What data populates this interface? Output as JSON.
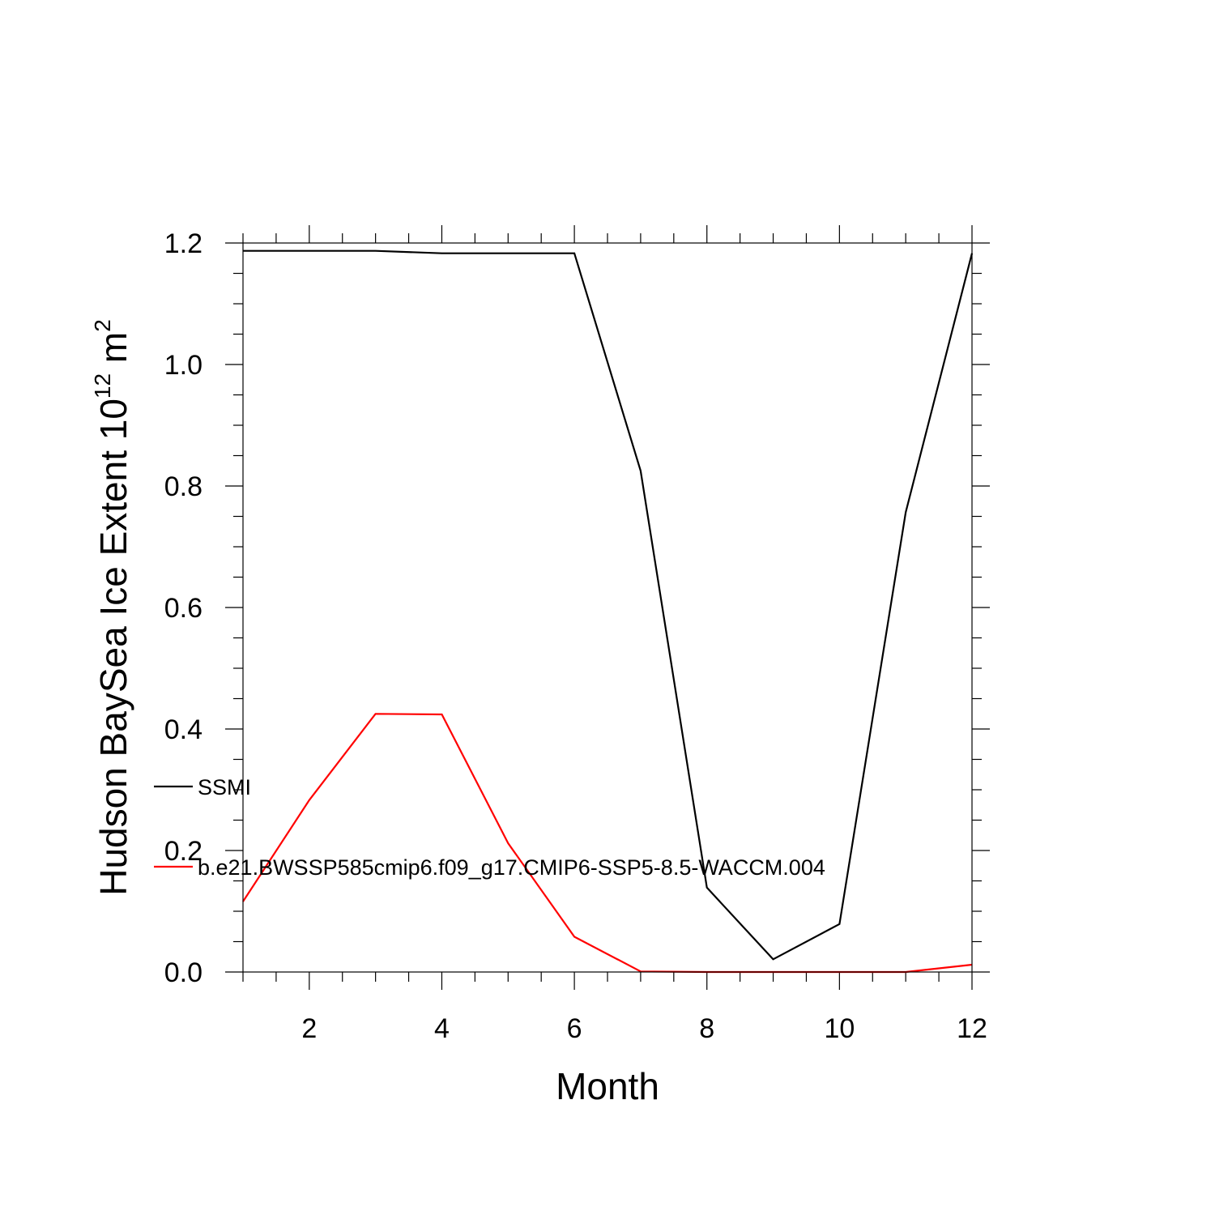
{
  "chart_data": {
    "type": "line",
    "title": "",
    "xlabel": "Month",
    "ylabel": {
      "prefix": "Hudson BaySea Ice Extent 10",
      "exponent": "12",
      "unit": " m",
      "unit_exponent": "2"
    },
    "xlim": [
      1,
      12
    ],
    "ylim": [
      0,
      1.2
    ],
    "x_ticks": [
      2,
      4,
      6,
      8,
      10,
      12
    ],
    "x_tick_labels": [
      "2",
      "4",
      "6",
      "8",
      "10",
      "12"
    ],
    "y_ticks": [
      0,
      0.2,
      0.4,
      0.6,
      0.8,
      1.0,
      1.2
    ],
    "y_tick_labels": [
      "0.0",
      "0.2",
      "0.4",
      "0.6",
      "0.8",
      "1.0",
      "1.2"
    ],
    "x": [
      1,
      2,
      3,
      4,
      5,
      6,
      7,
      8,
      9,
      10,
      11,
      12
    ],
    "series": [
      {
        "name": "SSMI",
        "color": "#000000",
        "values": [
          1.187,
          1.187,
          1.187,
          1.183,
          1.183,
          1.183,
          0.825,
          0.139,
          0.021,
          0.079,
          0.757,
          1.183
        ]
      },
      {
        "name": "b.e21.BWSSP585cmip6.f09_g17.CMIP6-SSP5-8.5-WACCM.004",
        "color": "#ff0000",
        "values": [
          0.116,
          0.283,
          0.425,
          0.424,
          0.212,
          0.058,
          0.001,
          0.0,
          0.0,
          0.0,
          0.0,
          0.012
        ]
      }
    ],
    "legend_position": "inside-left",
    "grid": false
  }
}
